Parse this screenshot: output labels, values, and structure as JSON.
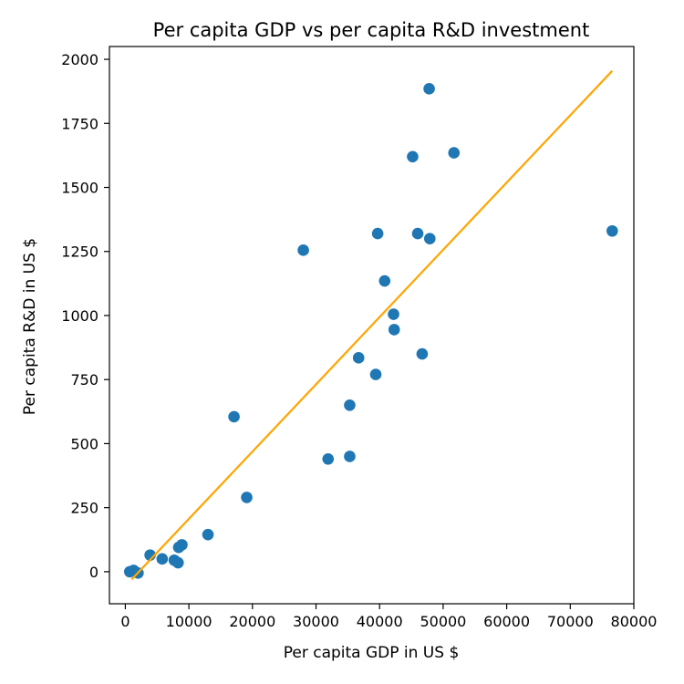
{
  "chart_data": {
    "type": "scatter",
    "title": "Per capita GDP vs per capita R&D investment",
    "xlabel": "Per capita GDP in US $",
    "ylabel": "Per capita R&D in US $",
    "xlim": [
      -2500,
      80000
    ],
    "ylim": [
      -125,
      2050
    ],
    "x_ticks": [
      0,
      10000,
      20000,
      30000,
      40000,
      50000,
      60000,
      70000,
      80000
    ],
    "y_ticks": [
      0,
      250,
      500,
      750,
      1000,
      1250,
      1500,
      1750,
      2000
    ],
    "grid": false,
    "colors": {
      "points": "#1f77b4",
      "fit_line": "#ffa500",
      "axes": "#000000"
    },
    "series": [
      {
        "type": "scatter",
        "points": [
          {
            "x": 700,
            "y": 0
          },
          {
            "x": 1300,
            "y": 5
          },
          {
            "x": 2000,
            "y": -5
          },
          {
            "x": 3900,
            "y": 65
          },
          {
            "x": 5800,
            "y": 50
          },
          {
            "x": 7700,
            "y": 45
          },
          {
            "x": 8300,
            "y": 35
          },
          {
            "x": 8400,
            "y": 95
          },
          {
            "x": 8900,
            "y": 105
          },
          {
            "x": 13000,
            "y": 145
          },
          {
            "x": 17100,
            "y": 605
          },
          {
            "x": 19100,
            "y": 290
          },
          {
            "x": 28000,
            "y": 1255
          },
          {
            "x": 31900,
            "y": 440
          },
          {
            "x": 35300,
            "y": 450
          },
          {
            "x": 35300,
            "y": 650
          },
          {
            "x": 36700,
            "y": 835
          },
          {
            "x": 39400,
            "y": 770
          },
          {
            "x": 39700,
            "y": 1320
          },
          {
            "x": 40800,
            "y": 1135
          },
          {
            "x": 42200,
            "y": 1005
          },
          {
            "x": 42300,
            "y": 945
          },
          {
            "x": 45200,
            "y": 1620
          },
          {
            "x": 46000,
            "y": 1320
          },
          {
            "x": 46700,
            "y": 850
          },
          {
            "x": 47900,
            "y": 1300
          },
          {
            "x": 47800,
            "y": 1885
          },
          {
            "x": 51700,
            "y": 1635
          },
          {
            "x": 76600,
            "y": 1330
          }
        ]
      },
      {
        "type": "line",
        "x": [
          1000,
          76600
        ],
        "y": [
          -30,
          1955
        ]
      }
    ]
  }
}
